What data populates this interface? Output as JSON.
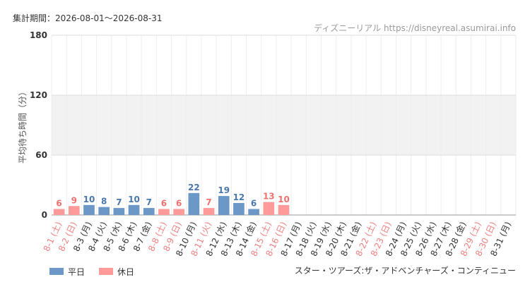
{
  "header": {
    "period": "集計期間：2026-08-01〜2026-08-31",
    "source": "ディズニーリアル https://disneyreal.asumirai.info",
    "attraction": "スター・ツアーズ:ザ・アドベンチャーズ・コンティニュー"
  },
  "chart_data": {
    "type": "bar",
    "y_label": "平均待ち時間（分）",
    "categories": [
      "8-1 (土)",
      "8-2 (日)",
      "8-3 (月)",
      "8-4 (火)",
      "8-5 (水)",
      "8-6 (木)",
      "8-7 (金)",
      "8-8 (土)",
      "8-9 (日)",
      "8-10 (月)",
      "8-11 (火)",
      "8-12 (水)",
      "8-13 (木)",
      "8-14 (金)",
      "8-15 (土)",
      "8-16 (日)",
      "8-17 (月)",
      "8-18 (火)",
      "8-19 (水)",
      "8-20 (木)",
      "8-21 (金)",
      "8-22 (土)",
      "8-23 (日)",
      "8-24 (月)",
      "8-25 (火)",
      "8-26 (水)",
      "8-27 (木)",
      "8-28 (金)",
      "8-29 (土)",
      "8-30 (日)",
      "8-31 (月)"
    ],
    "category_label_colors": [
      "#f08080",
      "#f08080",
      "#333",
      "#333",
      "#333",
      "#333",
      "#333",
      "#f08080",
      "#f08080",
      "#333",
      "#f08080",
      "#333",
      "#333",
      "#333",
      "#f08080",
      "#f08080",
      "#333",
      "#333",
      "#333",
      "#333",
      "#333",
      "#f08080",
      "#f08080",
      "#333",
      "#333",
      "#333",
      "#333",
      "#333",
      "#f08080",
      "#f08080",
      "#333"
    ],
    "series": [
      {
        "name": "平日",
        "color": "#6b98c6",
        "label_color": "#4a78ad",
        "values": [
          null,
          null,
          10,
          8,
          7,
          10,
          7,
          null,
          null,
          22,
          null,
          19,
          12,
          6,
          null,
          null,
          null,
          null,
          null,
          null,
          null,
          null,
          null,
          null,
          null,
          null,
          null,
          null,
          null,
          null,
          null
        ]
      },
      {
        "name": "休日",
        "color": "#ff9a9a",
        "label_color": "#f07070",
        "values": [
          6,
          9,
          null,
          null,
          null,
          null,
          null,
          6,
          6,
          null,
          7,
          null,
          null,
          null,
          13,
          10,
          null,
          null,
          null,
          null,
          null,
          null,
          null,
          null,
          null,
          null,
          null,
          null,
          null,
          null,
          null
        ]
      }
    ],
    "ylim": [
      0,
      180
    ],
    "yticks": [
      0,
      60,
      120,
      180
    ],
    "grid": true
  }
}
